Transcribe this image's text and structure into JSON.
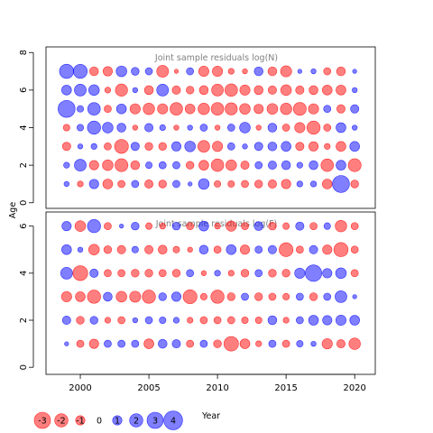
{
  "figure": {
    "ylabel": "Age",
    "xlabel": "Year"
  },
  "colors": {
    "positive_fill": "#0000FF",
    "negative_fill": "#FF0000",
    "fill_opacity": 0.5,
    "title_color": "#808080"
  },
  "legend": {
    "values": [
      -3,
      -2,
      -1,
      0,
      1,
      2,
      3,
      4
    ],
    "labels": [
      "-3",
      "-2",
      "-1",
      "0",
      "1",
      "2",
      "3",
      "4"
    ]
  },
  "chart_data": [
    {
      "type": "scatter",
      "title": "Joint sample residuals log(N)",
      "xlabel": "",
      "ylabel": "Age",
      "xlim": [
        1997.5,
        2021.5
      ],
      "ylim": [
        -0.3,
        8.3
      ],
      "yticks": [
        0,
        2,
        4,
        6,
        8
      ],
      "ytick_labels": [
        "0",
        "2",
        "4",
        "6",
        "8"
      ],
      "x_years": [
        1999,
        2000,
        2001,
        2002,
        2003,
        2004,
        2005,
        2006,
        2007,
        2008,
        2009,
        2010,
        2011,
        2012,
        2013,
        2014,
        2015,
        2016,
        2017,
        2018,
        2019,
        2020
      ],
      "ages": [
        1,
        2,
        3,
        4,
        5,
        6,
        7
      ],
      "residuals": {
        "7": [
          2.3,
          2.2,
          -0.9,
          -1.0,
          1.3,
          0.7,
          0.6,
          -1.6,
          -0.2,
          0.6,
          -1.2,
          -1.2,
          -0.4,
          -0.3,
          0.9,
          -0.9,
          -1.4,
          0.2,
          0.3,
          -0.6,
          -0.9,
          0.2
        ],
        "6": [
          1.1,
          1.6,
          1.3,
          -0.4,
          -1.7,
          0.3,
          -0.9,
          1.6,
          -0.8,
          -0.7,
          -0.9,
          -1.6,
          -1.8,
          -1.2,
          -0.9,
          -0.8,
          -1.3,
          -0.8,
          -0.9,
          -1.1,
          -1.1,
          0.3
        ],
        "5": [
          3.3,
          0.5,
          1.8,
          -0.6,
          1.1,
          -1.2,
          -1.5,
          -1.2,
          -1.8,
          -1.1,
          -1.5,
          -1.8,
          -1.7,
          -1.3,
          -1.0,
          -1.3,
          -1.5,
          -1.9,
          -1.2,
          0.6,
          -0.8,
          0.8
        ],
        "4": [
          -0.5,
          0.5,
          2.0,
          1.3,
          0.9,
          -0.3,
          0.8,
          0.4,
          -0.3,
          0.3,
          0.6,
          -0.3,
          0.6,
          1.3,
          -0.3,
          0.9,
          -0.6,
          -1.2,
          -2.0,
          -0.6,
          1.1,
          0.3
        ],
        "3": [
          -0.8,
          0.3,
          0.4,
          -0.6,
          -2.2,
          0.8,
          -0.7,
          -0.7,
          1.0,
          1.3,
          -1.6,
          -1.2,
          0.6,
          0.3,
          0.8,
          0.9,
          1.1,
          -0.8,
          -1.0,
          -0.4,
          -1.1,
          1.1
        ],
        "2": [
          0.4,
          1.6,
          -1.0,
          -1.3,
          -1.9,
          -0.9,
          0.5,
          0.6,
          0.6,
          -0.7,
          -1.1,
          -1.8,
          -1.3,
          -0.8,
          0.6,
          0.8,
          0.9,
          0.4,
          0.9,
          -1.8,
          1.1,
          -1.9
        ],
        "1": [
          0.3,
          -0.4,
          1.0,
          -1.1,
          -0.6,
          0.6,
          -0.8,
          -0.7,
          0.6,
          0.2,
          1.3,
          -0.5,
          -0.5,
          -0.6,
          -0.7,
          -0.8,
          -1.0,
          0.4,
          0.4,
          -1.1,
          3.3,
          -0.7
        ]
      }
    },
    {
      "type": "scatter",
      "title": "Joint sample residuals log(F)",
      "xlabel": "",
      "ylabel": "",
      "xlim": [
        1997.5,
        2021.5
      ],
      "ylim": [
        -0.3,
        6.6
      ],
      "yticks": [
        0,
        2,
        4,
        6
      ],
      "ytick_labels": [
        "0",
        "2",
        "4",
        "6"
      ],
      "xticks": [
        2000,
        2005,
        2010,
        2015,
        2020
      ],
      "xtick_labels": [
        "2000",
        "2005",
        "2010",
        "2015",
        "2020"
      ],
      "x_years": [
        1999,
        2000,
        2001,
        2002,
        2003,
        2004,
        2005,
        2006,
        2007,
        2008,
        2009,
        2010,
        2011,
        2012,
        2013,
        2014,
        2015,
        2016,
        2017,
        2018,
        2019,
        2020
      ],
      "ages": [
        1,
        2,
        3,
        4,
        5,
        6
      ],
      "residuals": {
        "6": [
          1.0,
          -1.3,
          2.0,
          -0.6,
          0.2,
          0.7,
          -0.5,
          -0.4,
          0.7,
          -0.6,
          1.1,
          -0.4,
          -1.2,
          -0.6,
          0.9,
          -0.7,
          -0.5,
          0.8,
          -0.6,
          0.5,
          -1.5,
          -0.6
        ],
        "5": [
          1.1,
          0.3,
          -1.3,
          -0.7,
          -0.8,
          0.5,
          -0.8,
          -0.9,
          -0.5,
          -0.3,
          0.9,
          -0.6,
          1.1,
          -1.0,
          0.6,
          0.8,
          -2.2,
          -0.6,
          0.8,
          -1.0,
          -2.3,
          -0.6
        ],
        "4": [
          1.6,
          -2.5,
          0.8,
          -0.6,
          -0.6,
          -0.7,
          -0.7,
          -0.6,
          -0.7,
          0.6,
          -0.3,
          0.4,
          -0.4,
          -0.7,
          0.6,
          -0.7,
          -0.7,
          1.2,
          3.1,
          1.0,
          1.3,
          -0.6
        ],
        "3": [
          -1.2,
          -1.1,
          -2.0,
          0.9,
          -1.3,
          -1.4,
          -2.0,
          0.7,
          1.0,
          -2.2,
          -0.5,
          -2.0,
          -0.7,
          0.6,
          -0.7,
          -0.6,
          -0.5,
          0.6,
          -0.7,
          0.6,
          1.6,
          0.2
        ],
        "2": [
          0.8,
          -0.7,
          0.7,
          -0.4,
          -0.6,
          0.3,
          0.6,
          0.5,
          0.4,
          -0.4,
          -0.6,
          -0.6,
          -0.6,
          -0.5,
          -0.5,
          0.9,
          -0.4,
          0.6,
          1.1,
          1.0,
          1.2,
          1.1
        ],
        "1": [
          0.2,
          -0.6,
          -1.0,
          0.6,
          0.6,
          0.6,
          -1.1,
          0.9,
          0.8,
          -0.6,
          0.6,
          -0.7,
          -2.4,
          -1.1,
          -0.4,
          0.6,
          -0.6,
          0.5,
          0.3,
          -1.2,
          -0.8,
          -1.5
        ]
      }
    }
  ]
}
